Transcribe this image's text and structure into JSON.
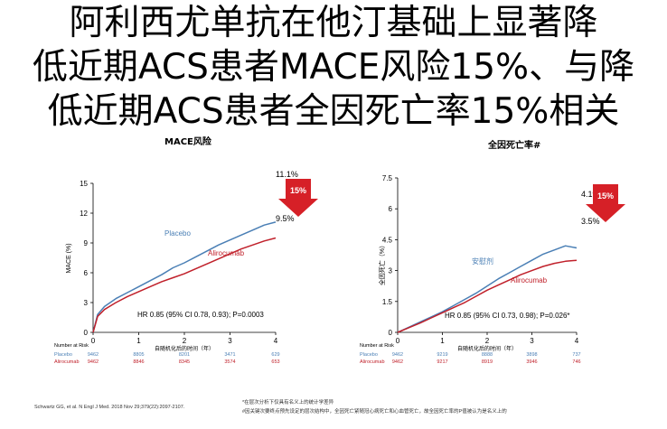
{
  "title_lines": [
    "阿利西尤单抗在他汀基础上显著降",
    "低近期ACS患者MACE风险15%、与降",
    "低近期ACS患者全因死亡率15%相关"
  ],
  "colors": {
    "placebo": "#4a7fb5",
    "alirocumab": "#c0202a",
    "badge": "#d62027"
  },
  "chart_data": [
    {
      "type": "line",
      "title": "MACE风险",
      "xlabel": "自随机化后的时间（年）",
      "ylabel": "MACE (%)",
      "xlim": [
        0,
        4
      ],
      "ylim": [
        0,
        15
      ],
      "xticks": [
        "0",
        "1",
        "2",
        "3",
        "4"
      ],
      "yticks": [
        "0",
        "3",
        "6",
        "9",
        "12",
        "15"
      ],
      "badge": "15%",
      "hr_text": "HR 0.85 (95% CI 0.78, 0.93); P=0.0003",
      "series": [
        {
          "name": "Placebo",
          "end_label": "11.1%",
          "x": [
            0,
            0.1,
            0.25,
            0.5,
            0.75,
            1,
            1.25,
            1.5,
            1.75,
            2,
            2.25,
            2.5,
            2.75,
            3,
            3.25,
            3.5,
            3.75,
            4
          ],
          "y": [
            0,
            1.8,
            2.6,
            3.4,
            4.0,
            4.6,
            5.2,
            5.8,
            6.5,
            7.0,
            7.6,
            8.2,
            8.8,
            9.3,
            9.8,
            10.3,
            10.8,
            11.1
          ]
        },
        {
          "name": "Alirocumab",
          "end_label": "9.5%",
          "x": [
            0,
            0.1,
            0.25,
            0.5,
            0.75,
            1,
            1.25,
            1.5,
            1.75,
            2,
            2.25,
            2.5,
            2.75,
            3,
            3.25,
            3.5,
            3.75,
            4
          ],
          "y": [
            0,
            1.6,
            2.3,
            3.0,
            3.6,
            4.1,
            4.6,
            5.1,
            5.5,
            5.9,
            6.4,
            6.9,
            7.4,
            7.9,
            8.4,
            8.8,
            9.2,
            9.5
          ]
        }
      ],
      "at_risk": {
        "header": "Number at Risk",
        "rows": [
          {
            "label": "Placebo",
            "values": [
              "9462",
              "8805",
              "8201",
              "3471",
              "629"
            ]
          },
          {
            "label": "Alirocumab",
            "values": [
              "9462",
              "8846",
              "8345",
              "3574",
              "653"
            ]
          }
        ]
      }
    },
    {
      "type": "line",
      "title": "全因死亡率#",
      "xlabel": "自随机化后的时间（年）",
      "ylabel": "全因死亡（%）",
      "xlim": [
        0,
        4
      ],
      "ylim": [
        0,
        7.5
      ],
      "xticks": [
        "0",
        "1",
        "2",
        "3",
        "4"
      ],
      "yticks": [
        "0",
        "1.5",
        "3",
        "4.5",
        "6",
        "7.5"
      ],
      "badge": "15%",
      "hr_text": "HR 0.85 (95% CI 0.73, 0.98); P=0.026*",
      "series": [
        {
          "name": "安慰剂",
          "end_label": "4.1%",
          "x": [
            0,
            0.25,
            0.5,
            0.75,
            1,
            1.25,
            1.5,
            1.75,
            2,
            2.25,
            2.5,
            2.75,
            3,
            3.25,
            3.5,
            3.75,
            4
          ],
          "y": [
            0,
            0.25,
            0.5,
            0.75,
            1.0,
            1.3,
            1.6,
            1.9,
            2.25,
            2.6,
            2.9,
            3.2,
            3.5,
            3.8,
            4.0,
            4.2,
            4.1
          ]
        },
        {
          "name": "Alirocumab",
          "end_label": "3.5%",
          "x": [
            0,
            0.25,
            0.5,
            0.75,
            1,
            1.25,
            1.5,
            1.75,
            2,
            2.25,
            2.5,
            2.75,
            3,
            3.25,
            3.5,
            3.75,
            4
          ],
          "y": [
            0,
            0.23,
            0.45,
            0.7,
            0.95,
            1.2,
            1.45,
            1.75,
            2.05,
            2.3,
            2.55,
            2.8,
            3.0,
            3.2,
            3.35,
            3.45,
            3.5
          ]
        }
      ],
      "at_risk": {
        "header": "Number at Risk",
        "rows": [
          {
            "label": "Placebo",
            "values": [
              "9462",
              "9219",
              "8888",
              "3898",
              "737"
            ]
          },
          {
            "label": "Alirocumab",
            "values": [
              "9462",
              "9217",
              "8919",
              "3946",
              "746"
            ]
          }
        ]
      }
    }
  ],
  "footnotes": {
    "citation": "Schwartz GG, et al. N Engl J Med. 2018 Nov 29;379(22):2097-2107.",
    "note1": "*在层次分析下仅具有名义上的统计学差异",
    "note2": "#因关键次要终点预先设定的层次结构中，全因死亡紧随冠心病死亡和心血管死亡，故全因死亡率的P值被认为是名义上的"
  }
}
